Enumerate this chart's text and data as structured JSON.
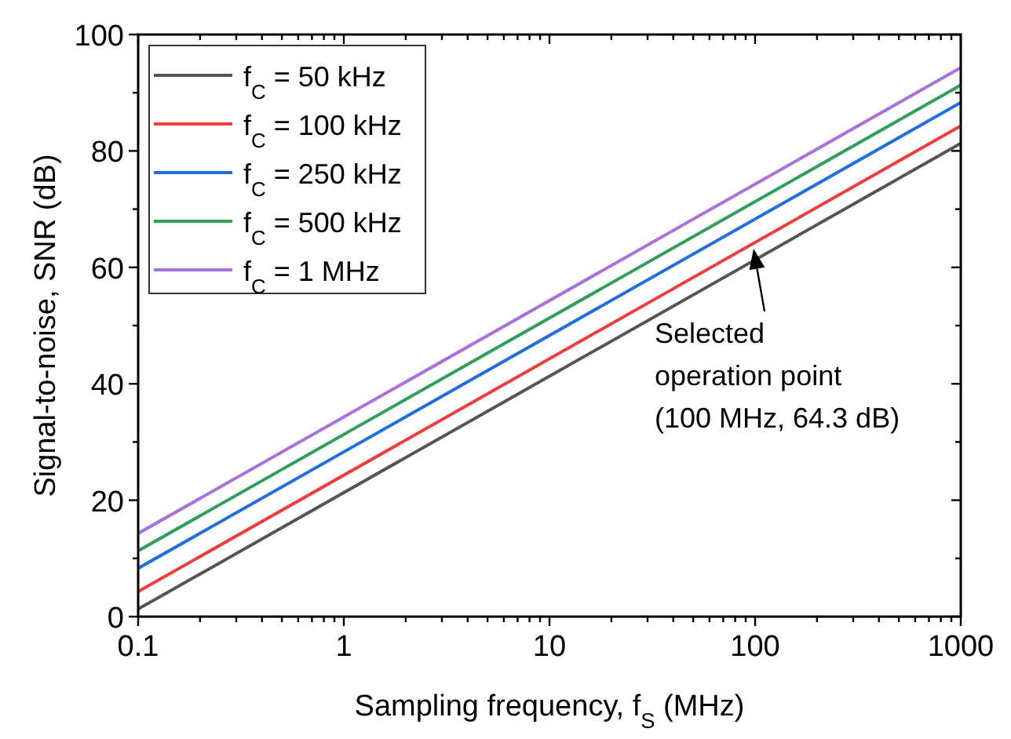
{
  "chart_data": {
    "type": "line",
    "xlabel": "Sampling frequency, f$_{S}$ (MHz)",
    "ylabel": "Signal-to-noise, SNR (dB)",
    "x": [
      0.1,
      1000
    ],
    "log": "x",
    "series": [
      {
        "name": "f$_{C}$ = 50 kHz",
        "color": "#555555",
        "values": [
          1.3,
          81.3
        ]
      },
      {
        "name": "f$_{C}$ = 100 kHz",
        "color": "#f03c3c",
        "values": [
          4.3,
          84.3
        ]
      },
      {
        "name": "f$_{C}$ = 250 kHz",
        "color": "#1f6fe0",
        "values": [
          8.3,
          88.3
        ]
      },
      {
        "name": "f$_{C}$ = 500 kHz",
        "color": "#2ea05a",
        "values": [
          11.3,
          91.3
        ]
      },
      {
        "name": "f$_{C}$ = 1 MHz",
        "color": "#a970e0",
        "values": [
          14.3,
          94.3
        ]
      }
    ],
    "xlim": [
      0.1,
      1000
    ],
    "xticks": [
      0.1,
      {
        "value": 0.2,
        "label": null
      },
      {
        "value": 0.3,
        "label": null
      },
      {
        "value": 0.4,
        "label": null
      },
      {
        "value": 0.5,
        "label": null
      },
      {
        "value": 0.6,
        "label": null
      },
      {
        "value": 0.7,
        "label": null
      },
      {
        "value": 0.8,
        "label": null
      },
      {
        "value": 0.9,
        "label": null
      },
      1,
      {
        "value": 2,
        "label": null
      },
      {
        "value": 3,
        "label": null
      },
      {
        "value": 4,
        "label": null
      },
      {
        "value": 5,
        "label": null
      },
      {
        "value": 6,
        "label": null
      },
      {
        "value": 7,
        "label": null
      },
      {
        "value": 8,
        "label": null
      },
      {
        "value": 9,
        "label": null
      },
      10,
      {
        "value": 20,
        "label": null
      },
      {
        "value": 30,
        "label": null
      },
      {
        "value": 40,
        "label": null
      },
      {
        "value": 50,
        "label": null
      },
      {
        "value": 60,
        "label": null
      },
      {
        "value": 70,
        "label": null
      },
      {
        "value": 80,
        "label": null
      },
      {
        "value": 90,
        "label": null
      },
      100,
      {
        "value": 200,
        "label": null
      },
      {
        "value": 300,
        "label": null
      },
      {
        "value": 400,
        "label": null
      },
      {
        "value": 500,
        "label": null
      },
      {
        "value": 600,
        "label": null
      },
      {
        "value": 700,
        "label": null
      },
      {
        "value": 800,
        "label": null
      },
      {
        "value": 900,
        "label": null
      },
      1000
    ],
    "ylim": [
      0,
      100
    ],
    "yticks": [
      0,
      {
        "value": 10,
        "label": null
      },
      20,
      {
        "value": 30,
        "label": null
      },
      40,
      {
        "value": 50,
        "label": null
      },
      60,
      {
        "value": 70,
        "label": null
      },
      80,
      {
        "value": 90,
        "label": null
      },
      100
    ],
    "grid": false,
    "legend": "top left",
    "line_style": "solid",
    "marker": "none",
    "annotations": [
      {
        "text": "Selected\noperation point\n(100 MHz, 64.3 dB)",
        "x": 100,
        "y": 64.3
      }
    ]
  }
}
